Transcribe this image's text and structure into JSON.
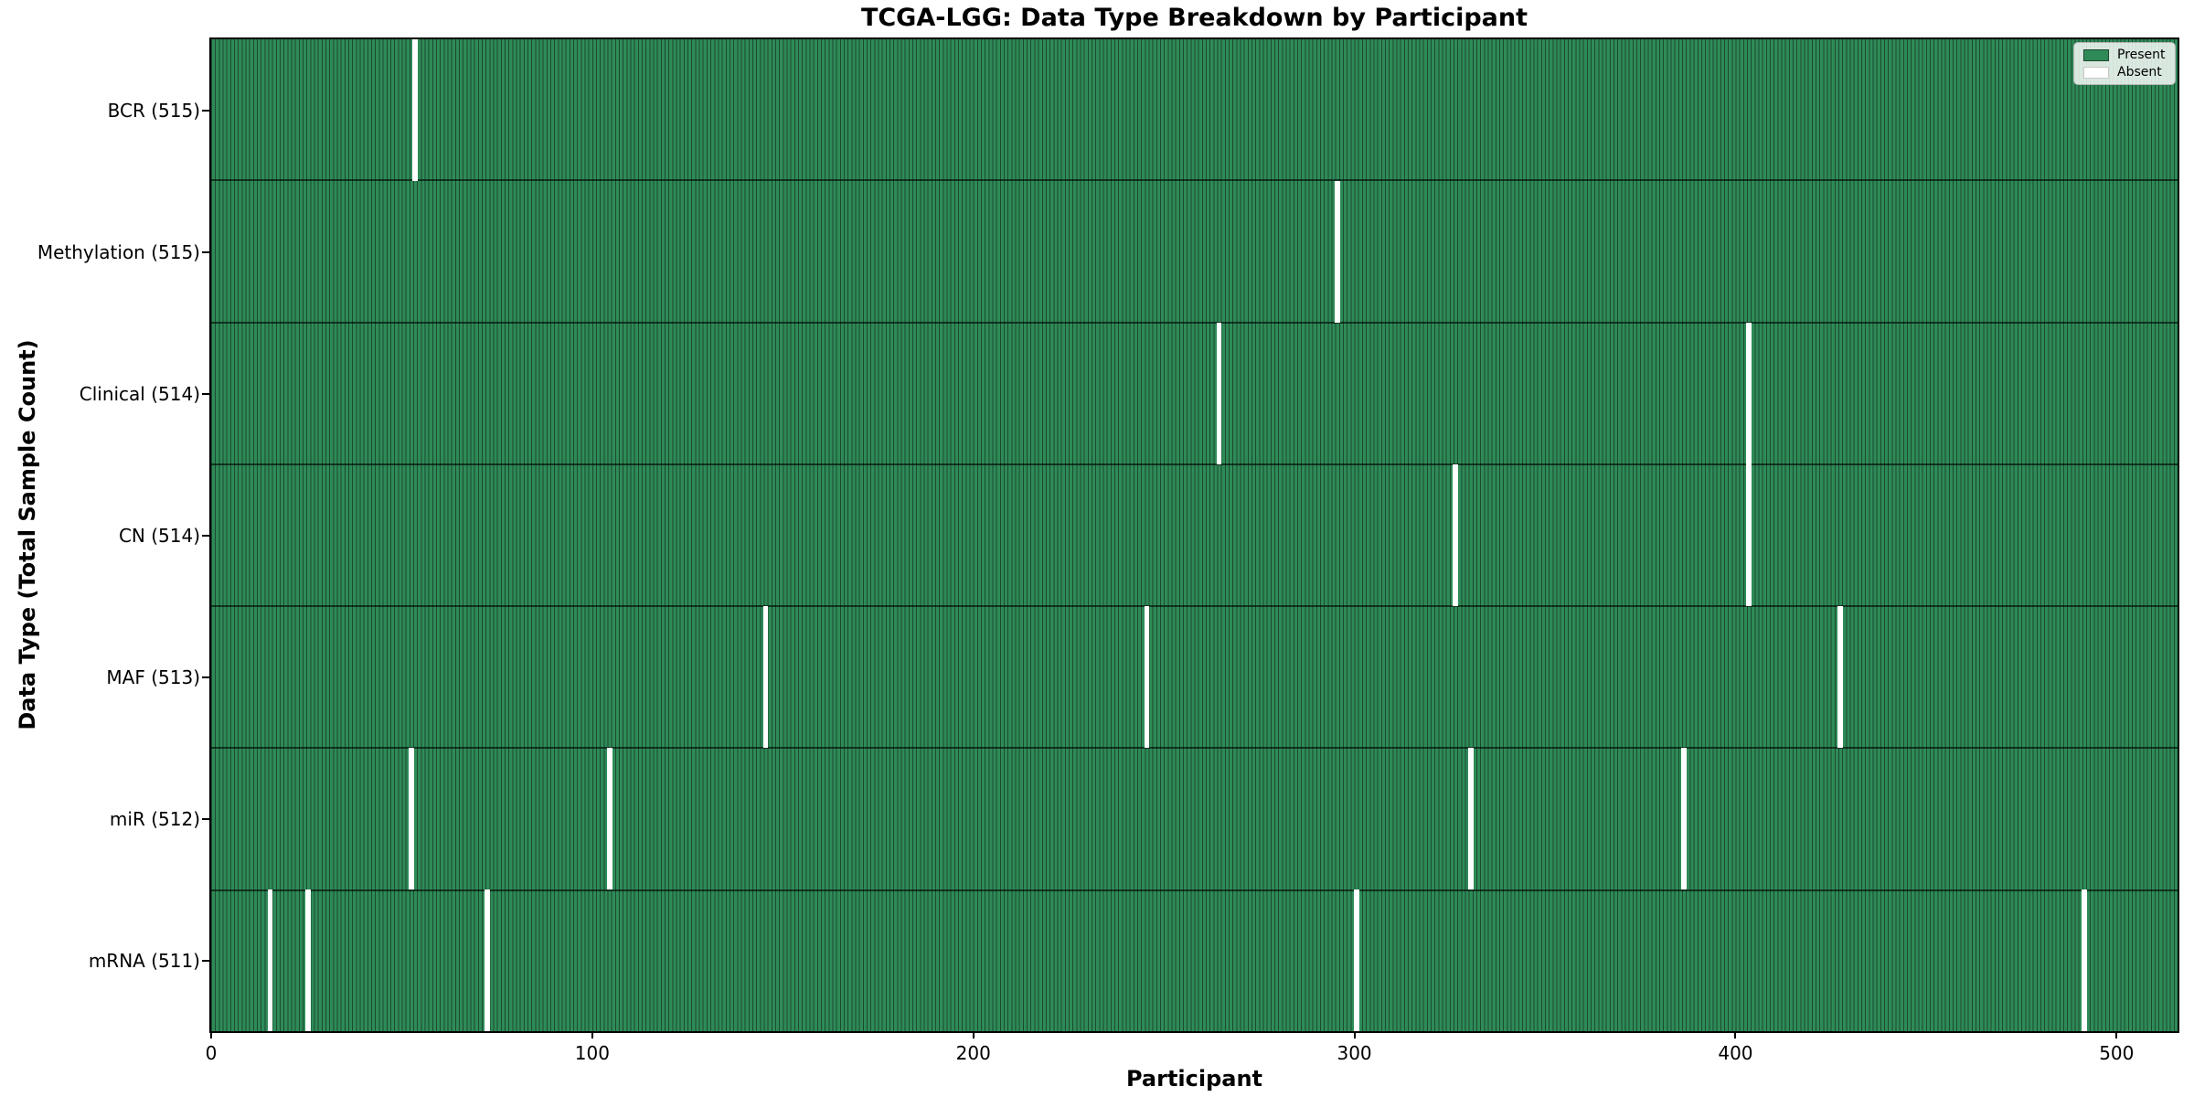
{
  "title": "TCGA-LGG: Data Type Breakdown by Participant",
  "axes": {
    "x_label": "Participant",
    "y_label": "Data Type (Total Sample Count)"
  },
  "legend": {
    "items": [
      {
        "label": "Present",
        "color": "#2e8b57"
      },
      {
        "label": "Absent",
        "color": "#ffffff"
      }
    ]
  },
  "colors": {
    "present_fill": "#2e8b57",
    "bar_edge": "#1d4a31",
    "absent_fill": "#ffffff",
    "spine": "#000000"
  },
  "chart_data": {
    "type": "heatmap",
    "title": "TCGA-LGG: Data Type Breakdown by Participant",
    "xlabel": "Participant",
    "ylabel": "Data Type (Total Sample Count)",
    "x_ticks": [
      0,
      100,
      200,
      300,
      400,
      500
    ],
    "x_range": [
      0,
      516
    ],
    "total_participants": 516,
    "grid": false,
    "legend_position": "upper right",
    "legend_entries": [
      "Present",
      "Absent"
    ],
    "rows": [
      {
        "label": "BCR (515)",
        "name": "BCR",
        "total": 515,
        "absent_participants": [
          53
        ]
      },
      {
        "label": "Methylation (515)",
        "name": "Methylation",
        "total": 515,
        "absent_participants": [
          295
        ]
      },
      {
        "label": "Clinical (514)",
        "name": "Clinical",
        "total": 514,
        "absent_participants": [
          264,
          403
        ]
      },
      {
        "label": "CN (514)",
        "name": "CN",
        "total": 514,
        "absent_participants": [
          326,
          403
        ]
      },
      {
        "label": "MAF (513)",
        "name": "MAF",
        "total": 513,
        "absent_participants": [
          145,
          245,
          427
        ]
      },
      {
        "label": "miR (512)",
        "name": "miR",
        "total": 512,
        "absent_participants": [
          52,
          104,
          330,
          386
        ]
      },
      {
        "label": "mRNA (511)",
        "name": "mRNA",
        "total": 511,
        "absent_participants": [
          15,
          25,
          72,
          300,
          491
        ]
      }
    ]
  }
}
